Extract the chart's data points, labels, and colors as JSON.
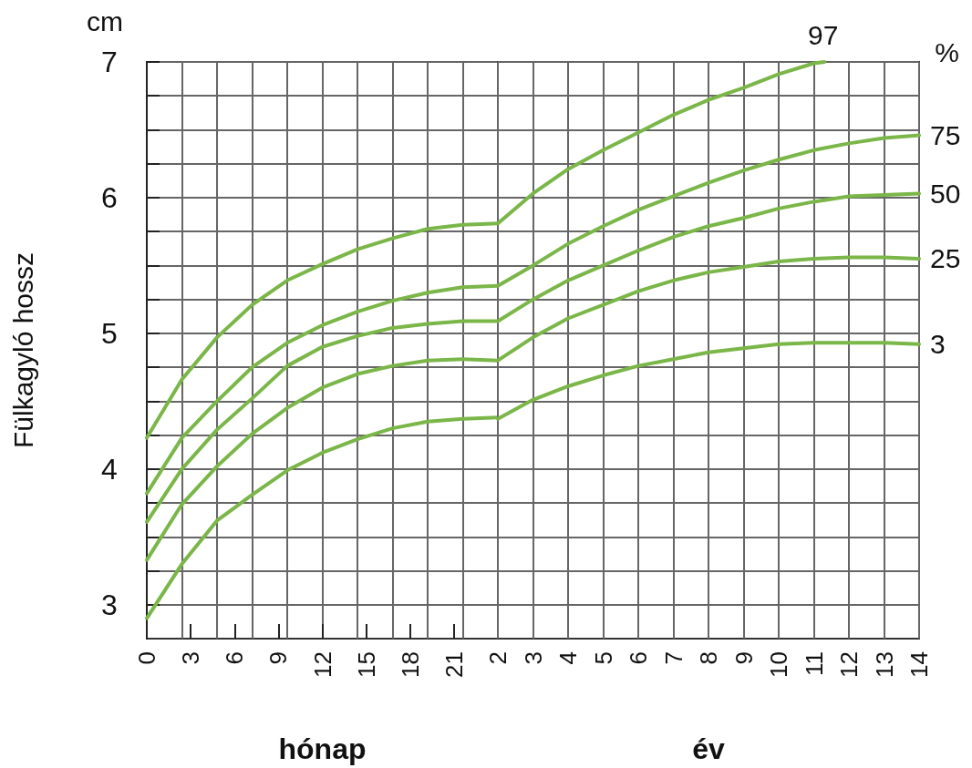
{
  "chart_data": [
    {
      "type": "line",
      "ylabel": "Fülkagyló hossz",
      "xlabel": "hónap",
      "annotations": [
        "cm"
      ],
      "grid": true,
      "marker": "none",
      "line_style": "solid",
      "xlim": [
        0,
        24
      ],
      "xticks": [
        0,
        3,
        6,
        9,
        12,
        15,
        18,
        21,
        {
          "value": 2.4,
          "label": null
        },
        {
          "value": 4.8,
          "label": null
        },
        {
          "value": 7.2,
          "label": null
        },
        {
          "value": 9.6,
          "label": null
        },
        {
          "value": 12,
          "label": null
        },
        {
          "value": 14.4,
          "label": null
        },
        {
          "value": 16.8,
          "label": null
        },
        {
          "value": 19.2,
          "label": null
        },
        {
          "value": 21.6,
          "label": null
        }
      ],
      "ylim": [
        2.75,
        7
      ],
      "yticks": [
        3,
        {
          "value": 3.25,
          "label": null
        },
        {
          "value": 3.5,
          "label": null
        },
        {
          "value": 3.75,
          "label": null
        },
        4,
        {
          "value": 4.25,
          "label": null
        },
        {
          "value": 4.5,
          "label": null
        },
        {
          "value": 4.75,
          "label": null
        },
        5,
        {
          "value": 5.25,
          "label": null
        },
        {
          "value": 5.5,
          "label": null
        },
        {
          "value": 5.75,
          "label": null
        },
        6,
        {
          "value": 6.25,
          "label": null
        },
        {
          "value": 6.5,
          "label": null
        },
        {
          "value": 6.75,
          "label": null
        },
        7
      ],
      "x": [
        0,
        2.4,
        4.8,
        7.2,
        9.6,
        12,
        14.4,
        16.8,
        19.2,
        21.6,
        24
      ],
      "series": [
        {
          "color": "#7ab648",
          "values": [
            4.23,
            4.66,
            4.97,
            5.21,
            5.39,
            5.51,
            5.62,
            5.7,
            5.77,
            5.8,
            5.81
          ]
        },
        {
          "color": "#7ab648",
          "values": [
            3.82,
            4.23,
            4.5,
            4.75,
            4.93,
            5.06,
            5.16,
            5.24,
            5.3,
            5.34,
            5.35
          ]
        },
        {
          "color": "#7ab648",
          "values": [
            3.61,
            4.0,
            4.29,
            4.52,
            4.76,
            4.9,
            4.98,
            5.04,
            5.07,
            5.09,
            5.09
          ]
        },
        {
          "color": "#7ab648",
          "values": [
            3.33,
            3.74,
            4.02,
            4.26,
            4.45,
            4.6,
            4.7,
            4.76,
            4.8,
            4.81,
            4.8
          ]
        },
        {
          "color": "#7ab648",
          "values": [
            2.9,
            3.3,
            3.62,
            3.81,
            3.99,
            4.12,
            4.22,
            4.3,
            4.35,
            4.37,
            4.38
          ]
        }
      ]
    },
    {
      "type": "line",
      "xlabel": "év",
      "annotations": [
        "%"
      ],
      "grid": true,
      "marker": "none",
      "line_style": "solid",
      "tick_labels": "x",
      "xlim": [
        2,
        14
      ],
      "xticks": [
        2,
        3,
        4,
        5,
        6,
        7,
        8,
        9,
        10,
        11,
        12,
        13,
        14
      ],
      "ylim": [
        2.75,
        7
      ],
      "yticks": [
        3,
        3.25,
        3.5,
        3.75,
        4,
        4.25,
        4.5,
        4.75,
        5,
        5.25,
        5.5,
        5.75,
        6,
        6.25,
        6.5,
        6.75,
        7
      ],
      "x": [
        2,
        3,
        4,
        5,
        6,
        7,
        8,
        9,
        10,
        11,
        12,
        13,
        14
      ],
      "series": [
        {
          "name": "97",
          "color": "#7ab648",
          "x": [
            2,
            3,
            4,
            5,
            6,
            7,
            8,
            9,
            10,
            11,
            11.3
          ],
          "values": [
            5.81,
            6.03,
            6.21,
            6.35,
            6.48,
            6.61,
            6.72,
            6.81,
            6.91,
            6.99,
            7.0
          ]
        },
        {
          "name": "75",
          "color": "#7ab648",
          "values": [
            5.35,
            5.5,
            5.66,
            5.79,
            5.91,
            6.01,
            6.11,
            6.2,
            6.28,
            6.35,
            6.4,
            6.44,
            6.46
          ]
        },
        {
          "name": "50",
          "color": "#7ab648",
          "values": [
            5.09,
            5.25,
            5.39,
            5.5,
            5.61,
            5.71,
            5.79,
            5.85,
            5.92,
            5.97,
            6.01,
            6.02,
            6.03
          ]
        },
        {
          "name": "25",
          "color": "#7ab648",
          "values": [
            4.8,
            4.97,
            5.11,
            5.21,
            5.31,
            5.39,
            5.45,
            5.49,
            5.53,
            5.55,
            5.56,
            5.56,
            5.55
          ]
        },
        {
          "name": "3",
          "color": "#7ab648",
          "values": [
            4.37,
            4.51,
            4.61,
            4.69,
            4.76,
            4.81,
            4.86,
            4.89,
            4.92,
            4.93,
            4.93,
            4.93,
            4.92
          ]
        }
      ]
    }
  ]
}
